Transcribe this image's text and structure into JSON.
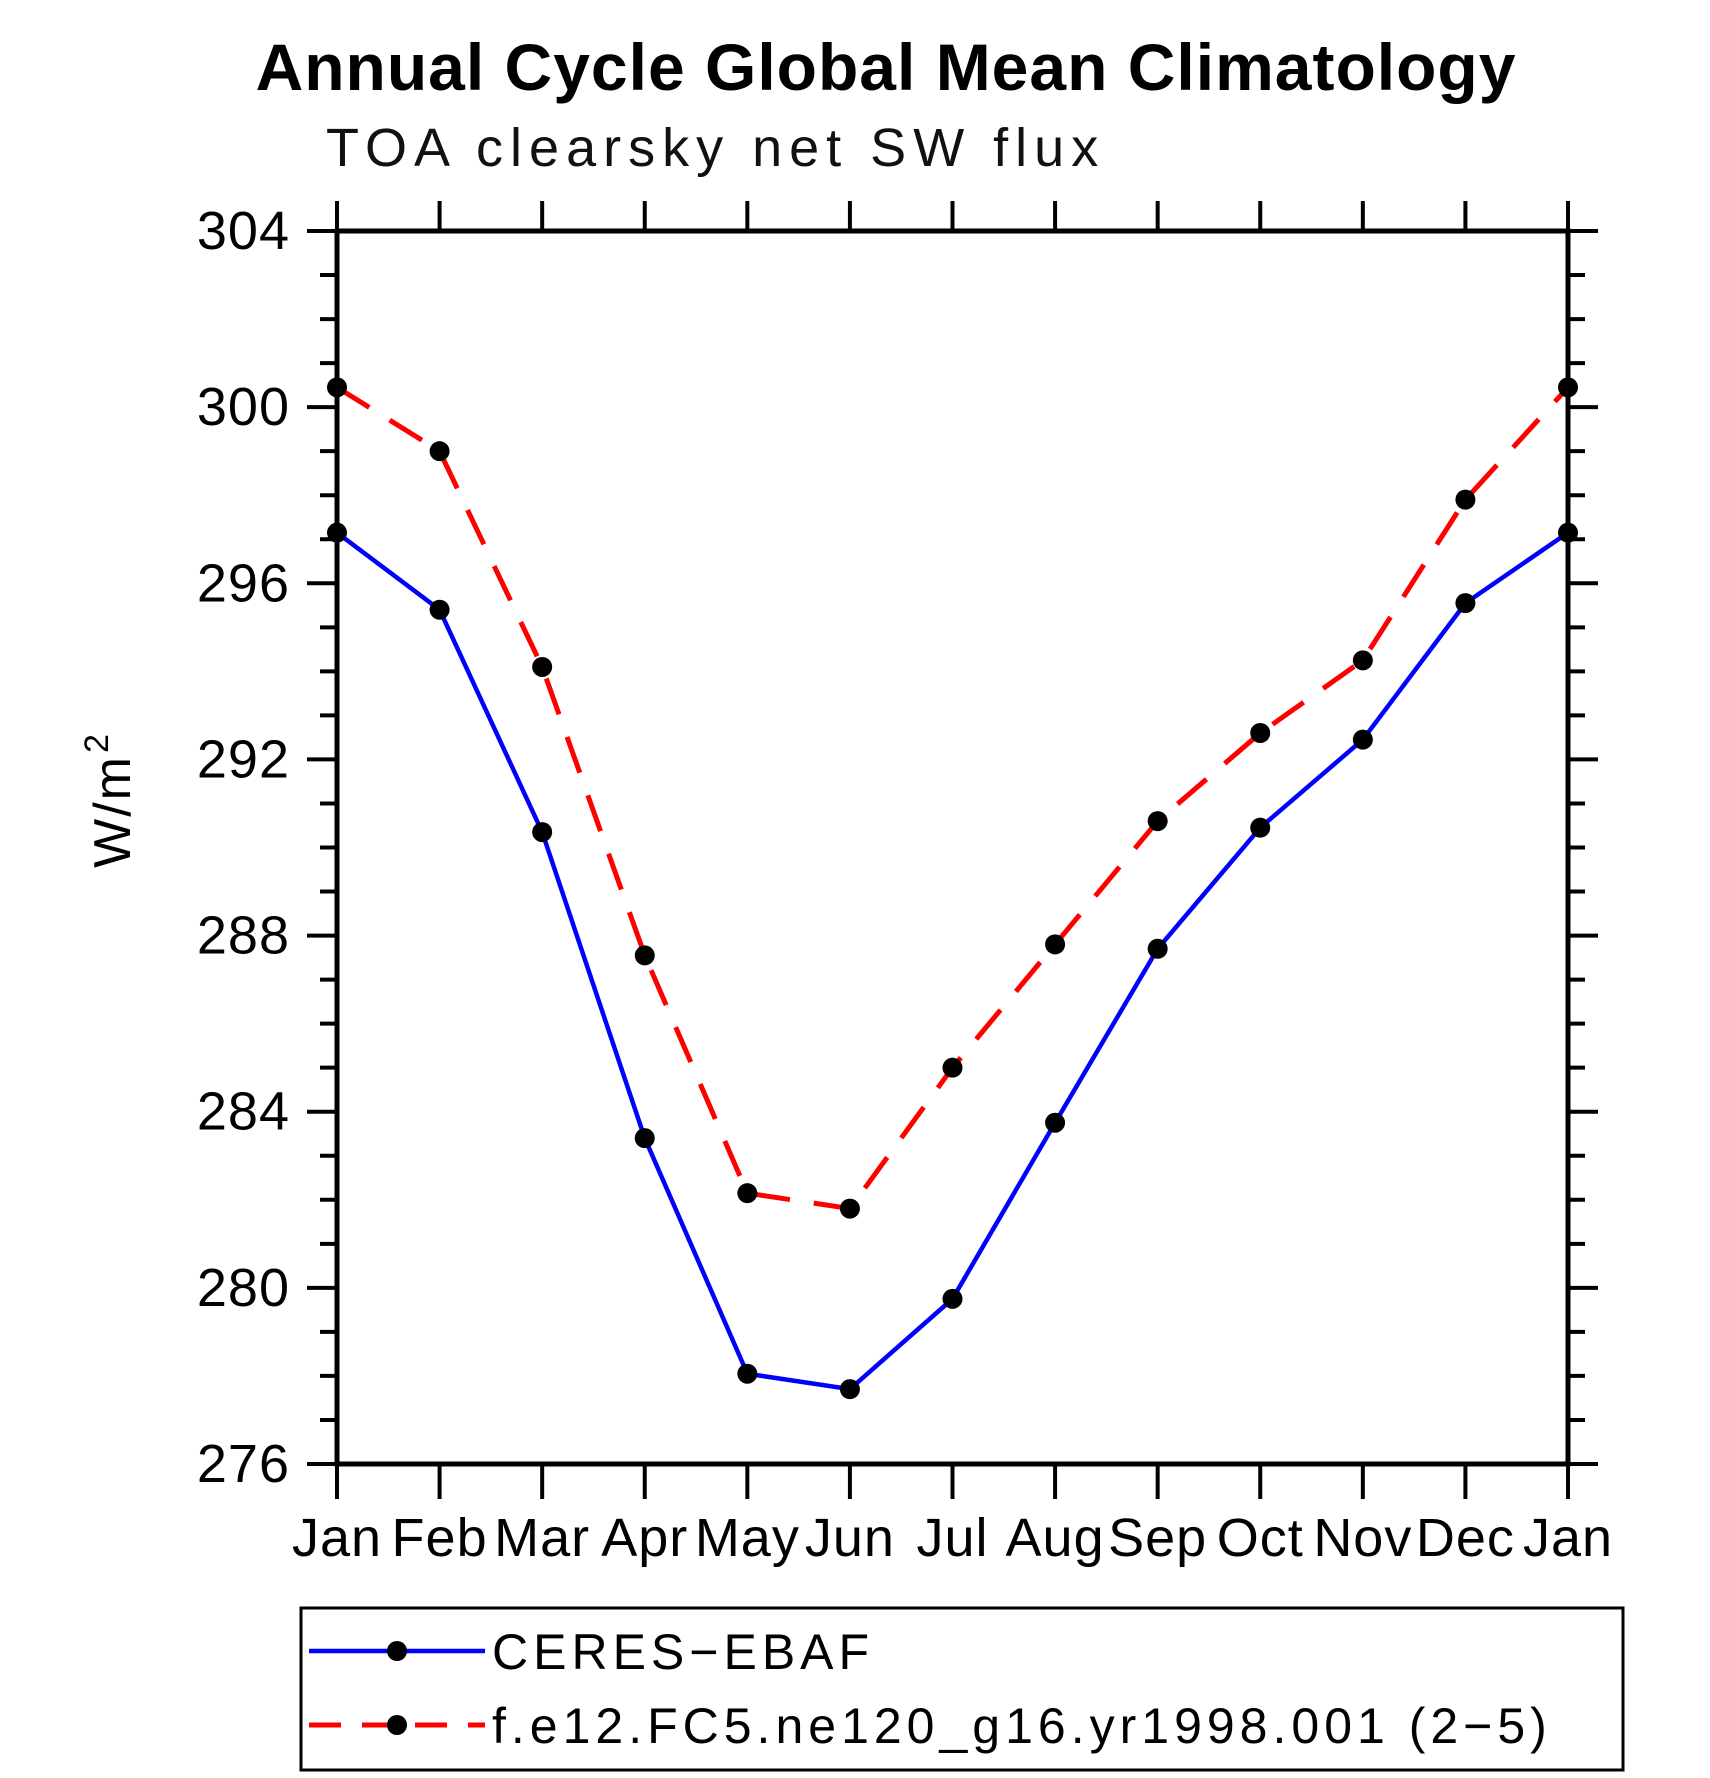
{
  "page": {
    "background_color": "#ffffff",
    "text_color": "#000000"
  },
  "chart_data": {
    "type": "line",
    "title": "Annual Cycle Global Mean Climatology",
    "subtitle": "TOA clearsky net SW flux",
    "ylabel": {
      "text": "W/m",
      "sup": "2"
    },
    "xlabel": "",
    "categories": [
      "Jan",
      "Feb",
      "Mar",
      "Apr",
      "May",
      "Jun",
      "Jul",
      "Aug",
      "Sep",
      "Oct",
      "Nov",
      "Dec",
      "Jan"
    ],
    "y_axis": {
      "min": 276,
      "max": 304,
      "major_tick_step": 4,
      "minor_tick_step": 1,
      "major_ticks": [
        276,
        280,
        284,
        288,
        292,
        296,
        300,
        304
      ]
    },
    "grid": "off",
    "legend_position": "bottom",
    "marker": {
      "shape": "circle",
      "color": "#000000"
    },
    "series": [
      {
        "name": "CERES−EBAF",
        "color": "#0000ff",
        "line_style": "solid",
        "values": [
          297.15,
          295.4,
          290.35,
          283.4,
          278.05,
          277.7,
          279.75,
          283.75,
          287.7,
          290.45,
          292.45,
          295.55,
          297.15
        ]
      },
      {
        "name": "f.e12.FC5.ne120_g16.yr1998.001 (2−5)",
        "color": "#ff0000",
        "line_style": "dashed",
        "values": [
          300.45,
          299.0,
          294.1,
          287.55,
          282.15,
          281.8,
          285.0,
          287.8,
          290.6,
          292.6,
          294.25,
          297.9,
          300.45
        ]
      }
    ]
  }
}
